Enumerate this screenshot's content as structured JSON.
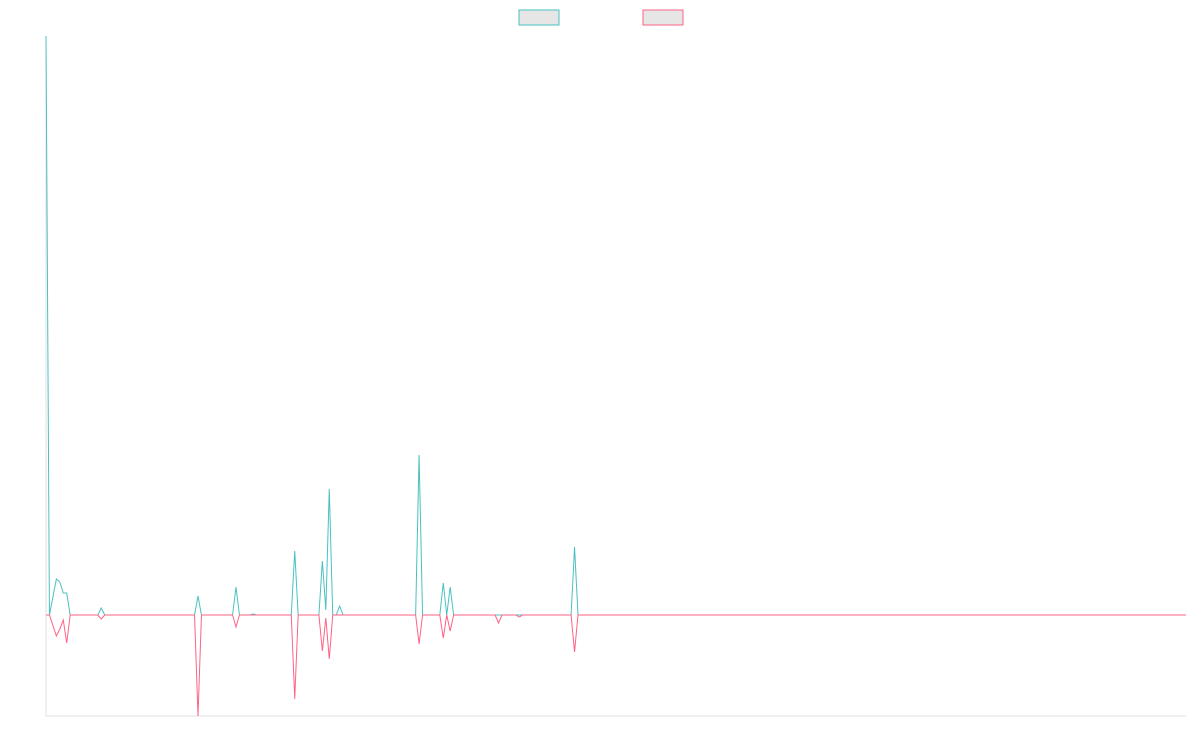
{
  "chart_data": {
    "type": "line",
    "x": [
      0,
      1,
      3,
      4,
      5,
      6,
      7,
      15,
      16,
      17,
      43,
      44,
      45,
      54,
      55,
      56,
      59,
      60,
      61,
      71,
      72,
      73,
      79,
      80,
      81,
      82,
      83,
      84,
      85,
      86,
      107,
      108,
      109,
      114,
      115,
      116,
      117,
      118,
      130,
      131,
      132,
      136,
      137,
      138,
      152,
      153,
      154,
      330
    ],
    "series": [
      {
        "color": "#4bc0c0",
        "values": [
          579,
          0,
          36,
          33,
          22,
          22,
          0,
          0,
          7,
          0,
          0,
          19,
          0,
          0,
          28,
          0,
          0,
          1,
          0,
          0,
          64,
          0,
          0,
          54,
          5,
          126,
          0,
          0,
          9,
          0,
          0,
          160,
          0,
          0,
          32,
          0,
          28,
          0,
          0,
          0,
          0,
          0,
          0,
          0,
          0,
          68,
          0,
          0
        ]
      },
      {
        "color": "#ff6384",
        "values": [
          0,
          0,
          -21,
          -14,
          -5,
          -28,
          0,
          0,
          -4,
          0,
          0,
          -101,
          0,
          0,
          -12,
          0,
          0,
          0,
          0,
          0,
          -84,
          0,
          0,
          -36,
          -3,
          -44,
          0,
          0,
          0,
          0,
          0,
          -29,
          0,
          0,
          -23,
          0,
          -16,
          0,
          0,
          -8,
          0,
          0,
          -2,
          0,
          0,
          -37,
          0,
          0
        ]
      }
    ],
    "xlim": [
      0,
      330
    ],
    "ylim": [
      -101,
      579
    ]
  }
}
